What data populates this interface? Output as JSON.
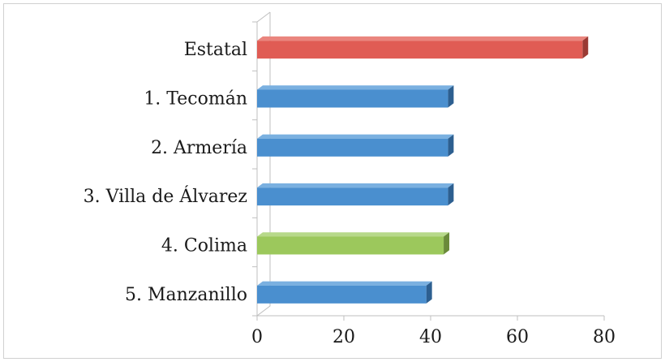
{
  "chart_data": {
    "type": "bar",
    "orientation": "horizontal",
    "style": "3d",
    "categories": [
      "Estatal",
      "1. Tecomán",
      "2. Armería",
      "3. Villa de Álvarez",
      "4. Colima",
      "5. Manzanillo"
    ],
    "values": [
      75,
      44,
      44,
      44,
      43,
      39
    ],
    "xlim": [
      0,
      80
    ],
    "xticks": [
      "0",
      "20",
      "40",
      "60",
      "80"
    ],
    "grid": false,
    "legend": "none",
    "bar_colors": {
      "Estatal": {
        "front": "#e05c54",
        "top": "#ea857e",
        "side": "#9a3a34"
      },
      "4. Colima": {
        "front": "#9cc85c",
        "top": "#b7d98a",
        "side": "#6a8a3a"
      },
      "default": {
        "front": "#4a8fcf",
        "top": "#7ab0e0",
        "side": "#2d5f90"
      }
    }
  }
}
